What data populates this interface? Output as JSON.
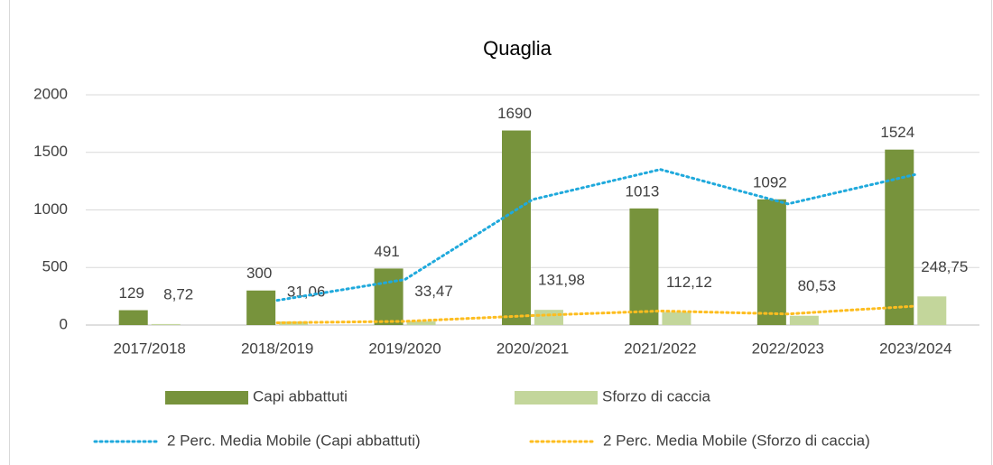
{
  "chart_data": {
    "type": "bar",
    "title": "Quaglia",
    "categories": [
      "2017/2018",
      "2018/2019",
      "2019/2020",
      "2020/2021",
      "2021/2022",
      "2022/2023",
      "2023/2024"
    ],
    "series": [
      {
        "name": "Capi abbattuti",
        "type": "bar",
        "color": "#77933c",
        "values": [
          129,
          300,
          491,
          1690,
          1013,
          1092,
          1524
        ]
      },
      {
        "name": "Sforzo di caccia",
        "type": "bar",
        "color": "#c3d69b",
        "values": [
          8.72,
          31.06,
          33.47,
          131.98,
          112.12,
          80.53,
          248.75
        ],
        "value_labels": [
          "8,72",
          "31,06",
          "33,47",
          "131,98",
          "112,12",
          "80,53",
          "248,75"
        ]
      },
      {
        "name": "2 Perc. Media Mobile (Capi abbattuti)",
        "type": "line",
        "color": "#1fa9dc",
        "values": [
          null,
          214.5,
          395.5,
          1090.5,
          1351.5,
          1052.5,
          1308
        ]
      },
      {
        "name": "2 Perc. Media Mobile (Sforzo di caccia)",
        "type": "line",
        "color": "#fdbd1f",
        "values": [
          null,
          19.89,
          32.27,
          82.73,
          122.05,
          96.33,
          164.64
        ]
      }
    ],
    "ylim": [
      0,
      2000
    ],
    "yticks": [
      0,
      500,
      1000,
      1500,
      2000
    ],
    "grid": true
  }
}
